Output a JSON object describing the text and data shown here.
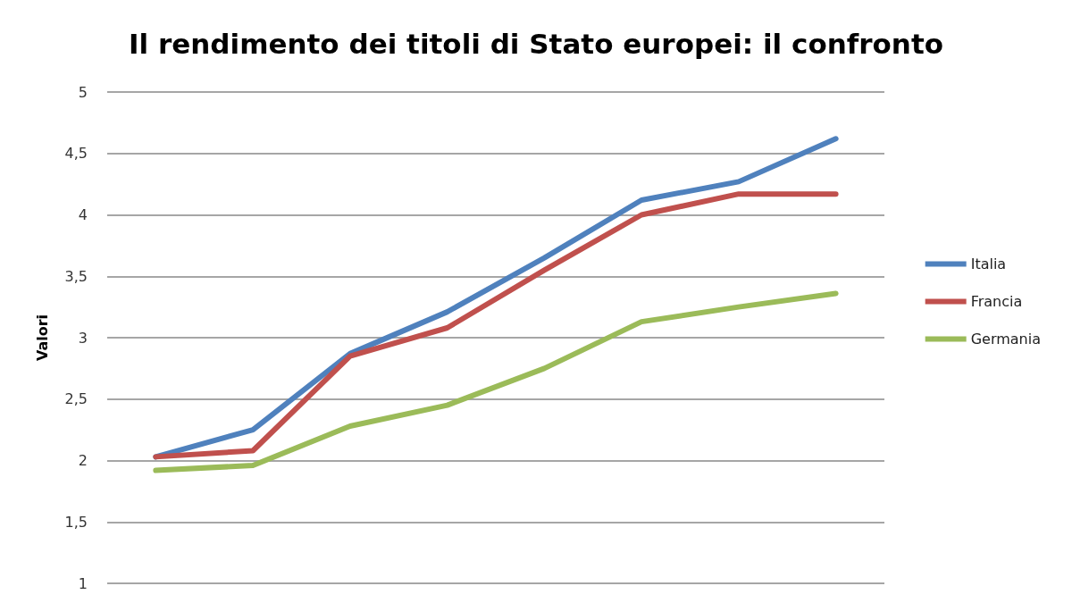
{
  "chart_data": {
    "type": "line",
    "title": "Il rendimento dei titoli di Stato europei: il confronto",
    "ylabel": "Valori",
    "categories": [
      null,
      null,
      null,
      null,
      null,
      null,
      null,
      null
    ],
    "series": [
      {
        "name": "Italia",
        "color": "#4f81bd",
        "values": [
          2.03,
          2.25,
          2.87,
          3.21,
          3.65,
          4.12,
          4.27,
          4.62
        ]
      },
      {
        "name": "Francia",
        "color": "#c0504d",
        "values": [
          2.03,
          2.08,
          2.85,
          3.08,
          3.55,
          4.0,
          4.17,
          4.17
        ]
      },
      {
        "name": "Germania",
        "color": "#9bbb59",
        "values": [
          1.92,
          1.96,
          2.28,
          2.45,
          2.75,
          3.13,
          3.25,
          3.36
        ]
      }
    ],
    "ylim": [
      1,
      5
    ],
    "yticks": [
      1,
      {
        "value": 1.5,
        "label": "1,5"
      },
      2,
      {
        "value": 2.5,
        "label": "2,5"
      },
      3,
      {
        "value": 3.5,
        "label": "3,5"
      },
      4,
      {
        "value": 4.5,
        "label": "4,5"
      },
      5
    ],
    "grid": "y",
    "legend": "right",
    "marker": "none",
    "line_style": "solid",
    "tick_labels": "y"
  }
}
